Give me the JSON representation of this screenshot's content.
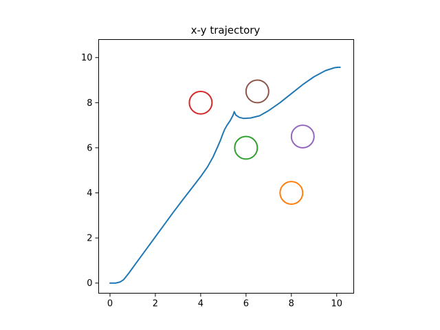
{
  "chart_data": {
    "type": "scatter",
    "title": "x-y trajectory",
    "xlabel": "",
    "ylabel": "",
    "xlim": [
      -0.5,
      10.75
    ],
    "ylim": [
      -0.45,
      10.8
    ],
    "xticks": [
      0,
      2,
      4,
      6,
      8,
      10
    ],
    "yticks": [
      0,
      2,
      4,
      6,
      8,
      10
    ],
    "grid": false,
    "aspect": "equal",
    "trajectory": {
      "color": "#1f77b4",
      "x": [
        0.0,
        0.25,
        0.45,
        0.6,
        0.8,
        1.2,
        1.6,
        2.0,
        2.4,
        2.8,
        3.2,
        3.6,
        4.0,
        4.3,
        4.55,
        4.75,
        4.88,
        4.97,
        5.05,
        5.15,
        5.3,
        5.43,
        5.48,
        5.55,
        5.7,
        5.9,
        6.2,
        6.6,
        7.0,
        7.5,
        8.0,
        8.5,
        9.0,
        9.5,
        9.9,
        10.05,
        10.15
      ],
      "y": [
        0.0,
        0.0,
        0.05,
        0.15,
        0.4,
        0.95,
        1.5,
        2.05,
        2.6,
        3.15,
        3.68,
        4.2,
        4.72,
        5.15,
        5.6,
        6.05,
        6.35,
        6.6,
        6.8,
        6.98,
        7.2,
        7.45,
        7.6,
        7.45,
        7.35,
        7.3,
        7.32,
        7.42,
        7.65,
        8.0,
        8.4,
        8.8,
        9.15,
        9.42,
        9.55,
        9.57,
        9.57
      ]
    },
    "obstacles": [
      {
        "x": 8.0,
        "y": 4.0,
        "r": 0.5,
        "color": "#ff7f0e"
      },
      {
        "x": 6.0,
        "y": 6.0,
        "r": 0.5,
        "color": "#2ca02c"
      },
      {
        "x": 4.0,
        "y": 8.0,
        "r": 0.5,
        "color": "#d62728"
      },
      {
        "x": 8.5,
        "y": 6.5,
        "r": 0.5,
        "color": "#9467bd"
      },
      {
        "x": 6.5,
        "y": 8.5,
        "r": 0.5,
        "color": "#8c564b"
      }
    ]
  }
}
